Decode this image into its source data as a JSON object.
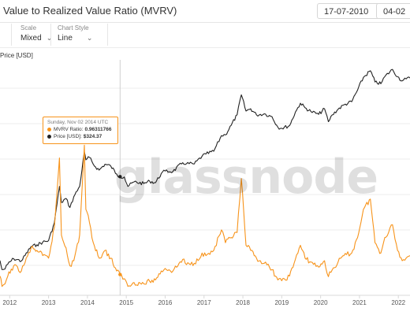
{
  "header": {
    "title": "Value to Realized Value Ratio (MVRV)",
    "date_start": "17-07-2010",
    "date_end": "04-02"
  },
  "controls": {
    "scale": {
      "label": "Scale",
      "value": "Mixed"
    },
    "chart_style": {
      "label": "Chart Style",
      "value": "Line"
    }
  },
  "tooltip": {
    "date": "Sunday, Nov 02 2014 UTC",
    "mvrv_label": "MVRV Ratio:",
    "mvrv_value": "0.96311766",
    "price_label": "Price [USD]:",
    "price_value": "$324.37"
  },
  "watermark": "glassnode",
  "colors": {
    "mvrv": "#f7931a",
    "price": "#222222",
    "grid": "#ececec",
    "accent": "#f7931a"
  },
  "chart_data": {
    "type": "line",
    "title": "Value to Realized Value Ratio (MVRV)",
    "ylabel": "Price [USD]",
    "x_tick_labels": [
      "2012",
      "2013",
      "2014",
      "2015",
      "2016",
      "2017",
      "2018",
      "2019",
      "2020",
      "2021",
      "2022"
    ],
    "x_range": [
      2011.75,
      2022.3
    ],
    "grid": true,
    "legend": "tooltip",
    "series": [
      {
        "name": "Price [USD]",
        "axis": "log",
        "y_range": [
          1,
          100000
        ],
        "points": [
          [
            2011.75,
            5
          ],
          [
            2011.8,
            3.2
          ],
          [
            2011.88,
            3.3
          ],
          [
            2011.95,
            4.2
          ],
          [
            2012.1,
            5.5
          ],
          [
            2012.3,
            4.9
          ],
          [
            2012.55,
            10
          ],
          [
            2012.7,
            11
          ],
          [
            2012.85,
            12.5
          ],
          [
            2013.0,
            13.5
          ],
          [
            2013.15,
            33
          ],
          [
            2013.28,
            200
          ],
          [
            2013.33,
            90
          ],
          [
            2013.45,
            110
          ],
          [
            2013.55,
            70
          ],
          [
            2013.65,
            120
          ],
          [
            2013.8,
            200
          ],
          [
            2013.92,
            1100
          ],
          [
            2013.96,
            750
          ],
          [
            2014.05,
            850
          ],
          [
            2014.15,
            600
          ],
          [
            2014.3,
            450
          ],
          [
            2014.45,
            600
          ],
          [
            2014.6,
            550
          ],
          [
            2014.75,
            370
          ],
          [
            2014.84,
            324
          ],
          [
            2014.95,
            320
          ],
          [
            2015.04,
            200
          ],
          [
            2015.2,
            250
          ],
          [
            2015.45,
            230
          ],
          [
            2015.6,
            260
          ],
          [
            2015.75,
            240
          ],
          [
            2015.9,
            380
          ],
          [
            2016.0,
            430
          ],
          [
            2016.2,
            420
          ],
          [
            2016.45,
            650
          ],
          [
            2016.55,
            620
          ],
          [
            2016.75,
            610
          ],
          [
            2016.95,
            900
          ],
          [
            2017.05,
            1000
          ],
          [
            2017.25,
            1150
          ],
          [
            2017.45,
            2500
          ],
          [
            2017.55,
            2600
          ],
          [
            2017.7,
            4200
          ],
          [
            2017.85,
            7000
          ],
          [
            2017.96,
            19000
          ],
          [
            2018.08,
            8500
          ],
          [
            2018.2,
            9500
          ],
          [
            2018.35,
            7000
          ],
          [
            2018.55,
            7400
          ],
          [
            2018.75,
            6400
          ],
          [
            2018.9,
            3800
          ],
          [
            2019.0,
            3600
          ],
          [
            2019.2,
            4100
          ],
          [
            2019.35,
            8000
          ],
          [
            2019.48,
            12500
          ],
          [
            2019.6,
            10000
          ],
          [
            2019.75,
            8300
          ],
          [
            2019.95,
            7200
          ],
          [
            2020.1,
            9500
          ],
          [
            2020.2,
            5000
          ],
          [
            2020.3,
            7000
          ],
          [
            2020.45,
            9300
          ],
          [
            2020.6,
            11500
          ],
          [
            2020.8,
            13500
          ],
          [
            2020.95,
            24000
          ],
          [
            2021.1,
            45000
          ],
          [
            2021.28,
            63000
          ],
          [
            2021.4,
            36000
          ],
          [
            2021.55,
            33000
          ],
          [
            2021.65,
            47000
          ],
          [
            2021.85,
            67000
          ],
          [
            2021.98,
            47000
          ],
          [
            2022.1,
            38000
          ],
          [
            2022.2,
            42000
          ],
          [
            2022.3,
            44000
          ]
        ]
      },
      {
        "name": "MVRV Ratio",
        "axis": "linear",
        "y_range": [
          0,
          6.5
        ],
        "points": [
          [
            2011.75,
            0.9
          ],
          [
            2011.8,
            0.5
          ],
          [
            2011.88,
            0.6
          ],
          [
            2011.95,
            0.9
          ],
          [
            2012.1,
            1.3
          ],
          [
            2012.3,
            1.1
          ],
          [
            2012.55,
            2.0
          ],
          [
            2012.7,
            1.9
          ],
          [
            2012.85,
            1.7
          ],
          [
            2013.0,
            1.6
          ],
          [
            2013.15,
            2.8
          ],
          [
            2013.28,
            5.5
          ],
          [
            2013.33,
            2.5
          ],
          [
            2013.45,
            2.0
          ],
          [
            2013.55,
            1.3
          ],
          [
            2013.65,
            1.5
          ],
          [
            2013.8,
            2.5
          ],
          [
            2013.92,
            6.0
          ],
          [
            2013.96,
            3.5
          ],
          [
            2014.05,
            3.0
          ],
          [
            2014.15,
            2.2
          ],
          [
            2014.3,
            1.6
          ],
          [
            2014.45,
            1.9
          ],
          [
            2014.6,
            1.6
          ],
          [
            2014.75,
            1.1
          ],
          [
            2014.84,
            0.96
          ],
          [
            2014.95,
            0.8
          ],
          [
            2015.04,
            0.5
          ],
          [
            2015.2,
            0.65
          ],
          [
            2015.45,
            0.6
          ],
          [
            2015.6,
            0.7
          ],
          [
            2015.75,
            0.75
          ],
          [
            2015.9,
            1.1
          ],
          [
            2016.0,
            1.2
          ],
          [
            2016.2,
            1.1
          ],
          [
            2016.45,
            1.55
          ],
          [
            2016.55,
            1.35
          ],
          [
            2016.75,
            1.4
          ],
          [
            2016.95,
            1.8
          ],
          [
            2017.05,
            1.7
          ],
          [
            2017.25,
            1.9
          ],
          [
            2017.45,
            2.7
          ],
          [
            2017.55,
            2.2
          ],
          [
            2017.7,
            2.4
          ],
          [
            2017.85,
            2.6
          ],
          [
            2017.96,
            4.7
          ],
          [
            2018.08,
            2.1
          ],
          [
            2018.2,
            1.9
          ],
          [
            2018.35,
            1.6
          ],
          [
            2018.55,
            1.4
          ],
          [
            2018.75,
            1.15
          ],
          [
            2018.9,
            0.75
          ],
          [
            2019.0,
            0.72
          ],
          [
            2019.2,
            0.9
          ],
          [
            2019.35,
            1.55
          ],
          [
            2019.48,
            2.1
          ],
          [
            2019.6,
            1.6
          ],
          [
            2019.75,
            1.45
          ],
          [
            2019.95,
            1.25
          ],
          [
            2020.1,
            1.5
          ],
          [
            2020.2,
            0.88
          ],
          [
            2020.3,
            1.15
          ],
          [
            2020.45,
            1.45
          ],
          [
            2020.6,
            1.7
          ],
          [
            2020.8,
            1.8
          ],
          [
            2020.95,
            2.4
          ],
          [
            2021.1,
            3.5
          ],
          [
            2021.28,
            3.9
          ],
          [
            2021.4,
            2.2
          ],
          [
            2021.55,
            1.8
          ],
          [
            2021.65,
            2.4
          ],
          [
            2021.85,
            2.9
          ],
          [
            2021.98,
            1.9
          ],
          [
            2022.1,
            1.5
          ],
          [
            2022.2,
            1.6
          ],
          [
            2022.3,
            1.7
          ]
        ]
      }
    ]
  }
}
